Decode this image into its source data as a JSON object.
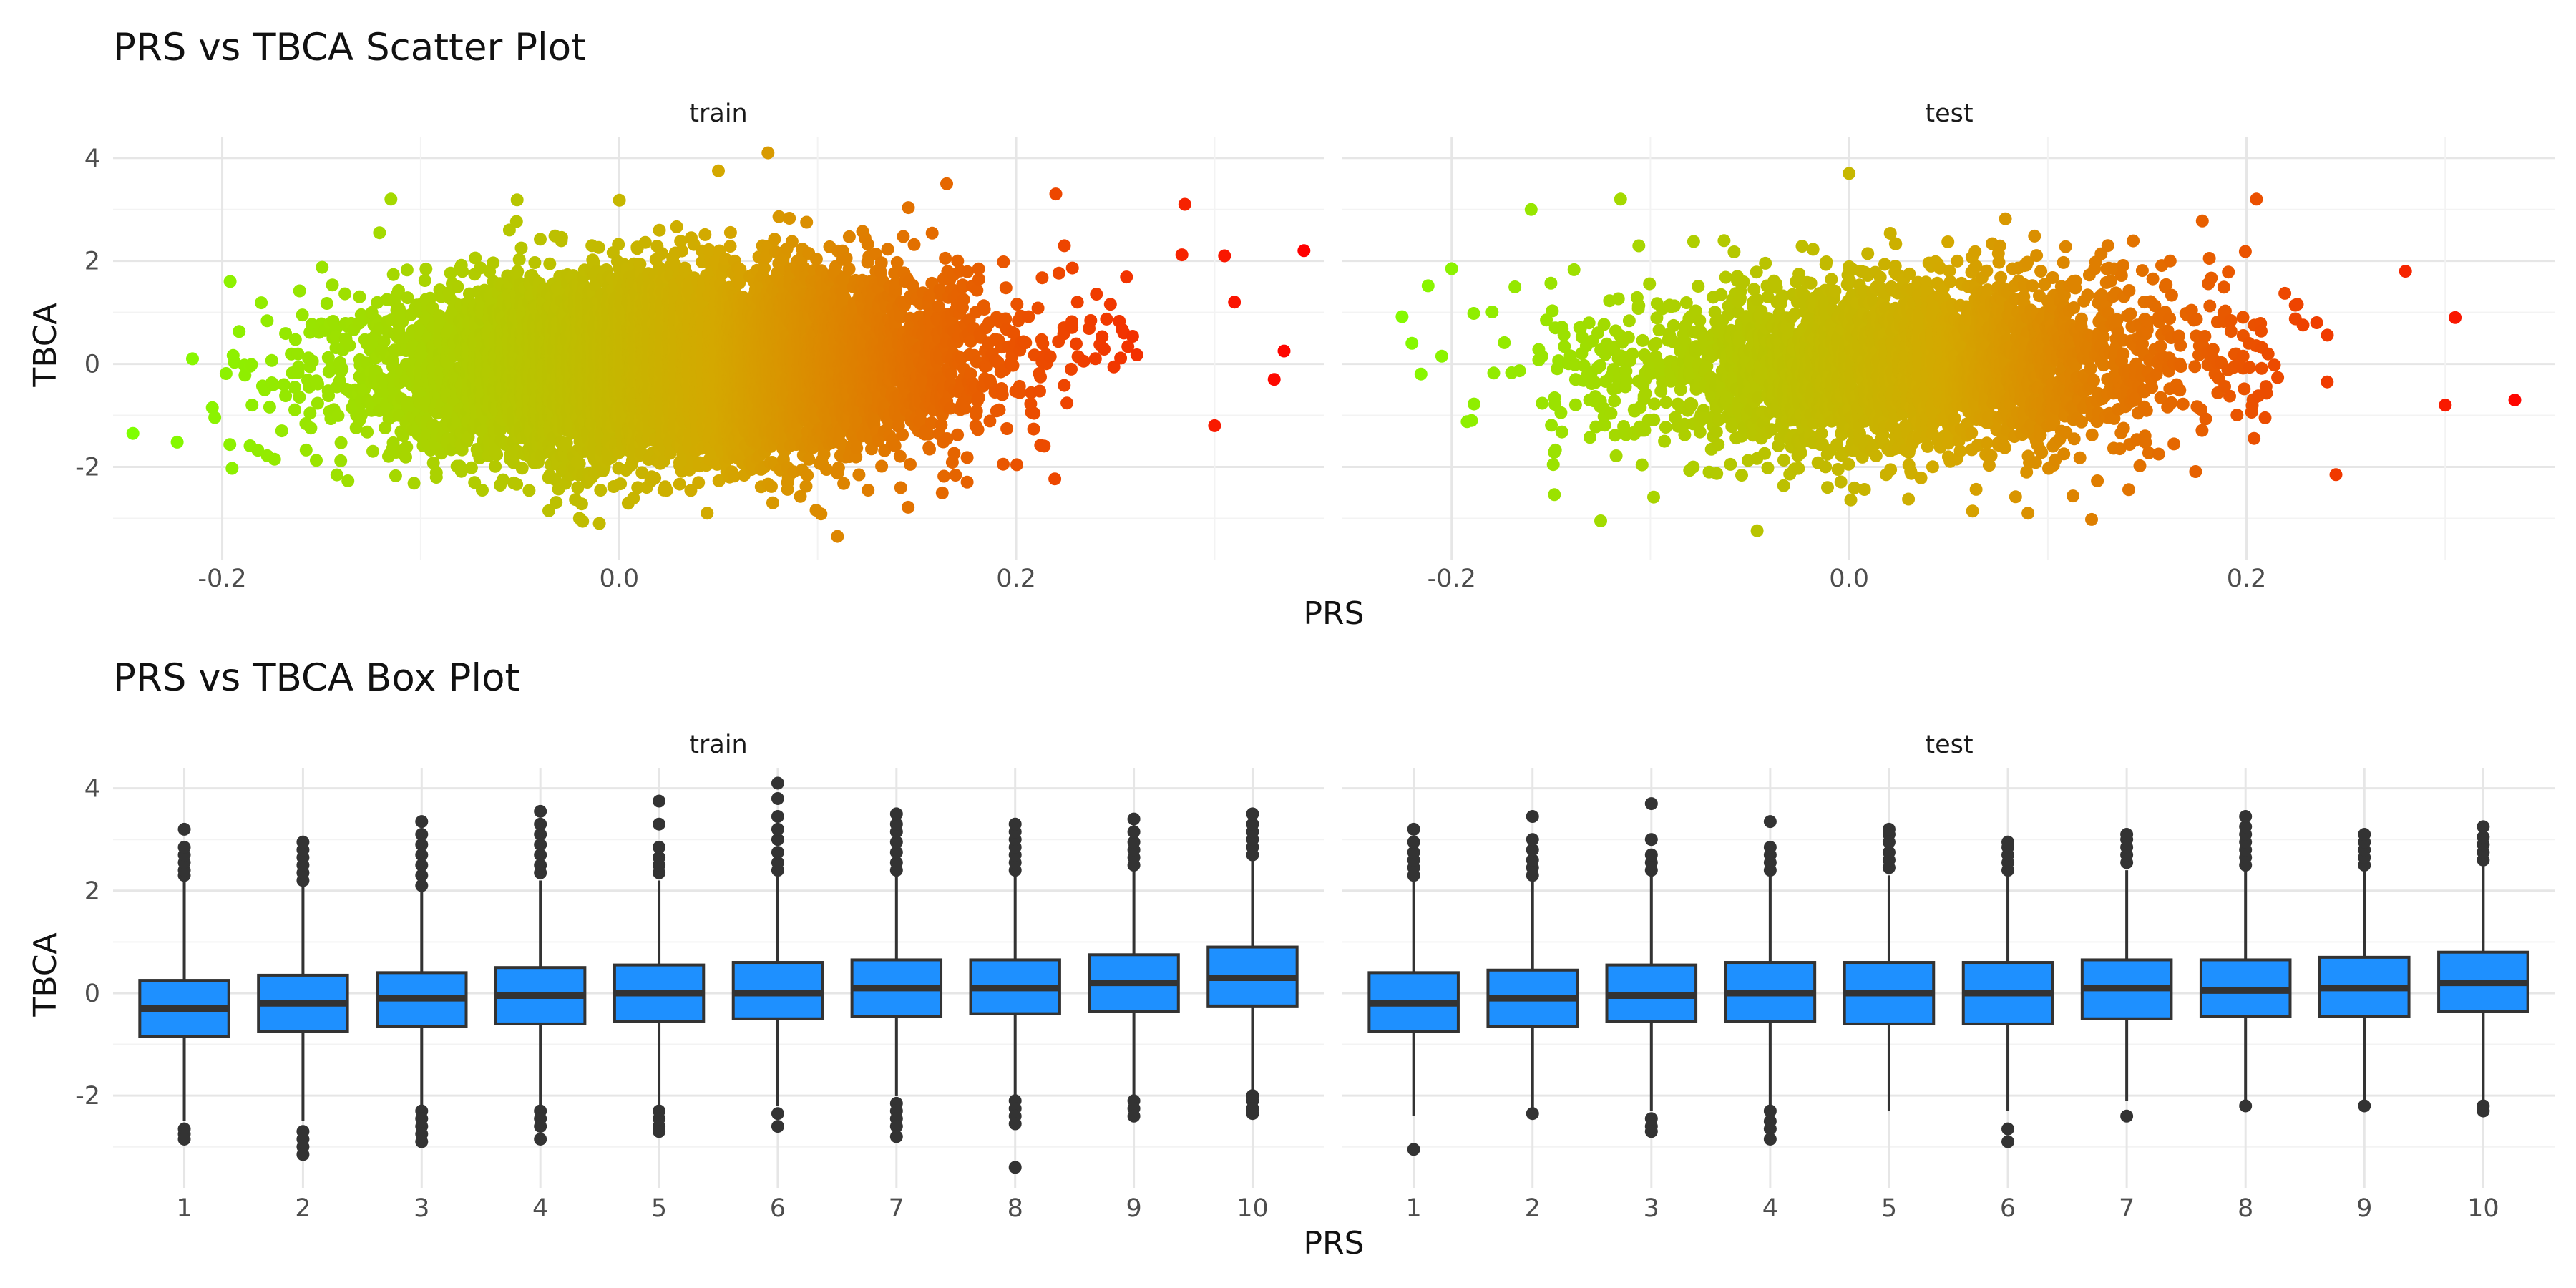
{
  "chart_data": [
    {
      "type": "scatter",
      "title": "PRS vs TBCA Scatter Plot",
      "xlabel": "PRS",
      "ylabel": "TBCA",
      "facets": [
        "train",
        "test"
      ],
      "xlim": [
        -0.255,
        0.355
      ],
      "ylim": [
        -3.8,
        4.4
      ],
      "x_ticks": [
        -0.2,
        0.0,
        0.2
      ],
      "x_tick_labels": [
        "-0.2",
        "0.0",
        "0.2"
      ],
      "y_ticks": [
        -2,
        0,
        2,
        4
      ],
      "y_tick_labels": [
        "-2",
        "0",
        "2",
        "4"
      ],
      "grid": true,
      "color_gradient": {
        "low": "#7FFF00",
        "mid": "#D4A800",
        "high": "#FF0000",
        "by": "PRS"
      },
      "series": [
        {
          "facet": "train",
          "n_points_approx": 20000,
          "x_mean": 0.03,
          "x_sd": 0.07,
          "y_mean": 0.0,
          "y_sd": 0.85,
          "slope": 3.0,
          "points": [
            {
              "x": -0.245,
              "y": -1.35
            },
            {
              "x": -0.215,
              "y": 0.1
            },
            {
              "x": -0.205,
              "y": -0.85
            },
            {
              "x": -0.185,
              "y": -0.8
            },
            {
              "x": -0.17,
              "y": -1.3
            },
            {
              "x": -0.115,
              "y": 3.2
            },
            {
              "x": -0.02,
              "y": -3.0
            },
            {
              "x": -0.01,
              "y": -3.1
            },
            {
              "x": 0.075,
              "y": 4.1
            },
            {
              "x": 0.05,
              "y": 3.75
            },
            {
              "x": 0.11,
              "y": -3.35
            },
            {
              "x": 0.165,
              "y": 3.5
            },
            {
              "x": 0.22,
              "y": 3.3
            },
            {
              "x": 0.285,
              "y": 3.1
            },
            {
              "x": 0.305,
              "y": 2.1
            },
            {
              "x": 0.345,
              "y": 2.2
            },
            {
              "x": 0.335,
              "y": 0.25
            },
            {
              "x": 0.33,
              "y": -0.3
            },
            {
              "x": 0.31,
              "y": 1.2
            },
            {
              "x": 0.3,
              "y": -1.2
            }
          ]
        },
        {
          "facet": "test",
          "n_points_approx": 7000,
          "x_mean": 0.03,
          "x_sd": 0.07,
          "y_mean": 0.0,
          "y_sd": 0.85,
          "slope": 3.0,
          "points": [
            {
              "x": -0.22,
              "y": 0.4
            },
            {
              "x": -0.2,
              "y": 1.85
            },
            {
              "x": -0.19,
              "y": -1.1
            },
            {
              "x": -0.205,
              "y": 0.15
            },
            {
              "x": -0.125,
              "y": -3.05
            },
            {
              "x": -0.16,
              "y": 3.0
            },
            {
              "x": -0.115,
              "y": 3.2
            },
            {
              "x": 0.0,
              "y": 3.7
            },
            {
              "x": 0.09,
              "y": -2.9
            },
            {
              "x": 0.205,
              "y": 3.2
            },
            {
              "x": 0.245,
              "y": -2.15
            },
            {
              "x": 0.305,
              "y": 0.9
            },
            {
              "x": 0.335,
              "y": -0.7
            },
            {
              "x": 0.3,
              "y": -0.8
            },
            {
              "x": 0.28,
              "y": 1.8
            }
          ]
        }
      ]
    },
    {
      "type": "box",
      "title": "PRS vs TBCA Box Plot",
      "xlabel": "PRS",
      "ylabel": "TBCA",
      "facets": [
        "train",
        "test"
      ],
      "categories": [
        "1",
        "2",
        "3",
        "4",
        "5",
        "6",
        "7",
        "8",
        "9",
        "10"
      ],
      "ylim": [
        -3.8,
        4.4
      ],
      "y_ticks": [
        -2,
        0,
        2,
        4
      ],
      "y_tick_labels": [
        "-2",
        "0",
        "2",
        "4"
      ],
      "grid": true,
      "box_color": "#1E90FF",
      "series": [
        {
          "facet": "train",
          "boxes": [
            {
              "q1": -0.85,
              "median": -0.3,
              "q3": 0.25,
              "whisker_low": -2.5,
              "whisker_high": 2.2,
              "outliers": [
                -2.65,
                -2.75,
                -2.85,
                2.3,
                2.4,
                2.55,
                2.7,
                2.85,
                3.2
              ]
            },
            {
              "q1": -0.75,
              "median": -0.2,
              "q3": 0.35,
              "whisker_low": -2.5,
              "whisker_high": 2.1,
              "outliers": [
                -2.7,
                -2.85,
                -3.0,
                -3.15,
                2.2,
                2.35,
                2.5,
                2.65,
                2.8,
                2.95
              ]
            },
            {
              "q1": -0.65,
              "median": -0.1,
              "q3": 0.4,
              "whisker_low": -2.2,
              "whisker_high": 2.0,
              "outliers": [
                -2.3,
                -2.45,
                -2.6,
                -2.75,
                -2.9,
                2.1,
                2.3,
                2.5,
                2.7,
                2.9,
                3.1,
                3.35
              ]
            },
            {
              "q1": -0.6,
              "median": -0.05,
              "q3": 0.5,
              "whisker_low": -2.2,
              "whisker_high": 2.2,
              "outliers": [
                -2.3,
                -2.45,
                -2.6,
                -2.85,
                2.35,
                2.5,
                2.7,
                2.9,
                3.1,
                3.3,
                3.55
              ]
            },
            {
              "q1": -0.55,
              "median": 0.0,
              "q3": 0.55,
              "whisker_low": -2.2,
              "whisker_high": 2.2,
              "outliers": [
                -2.3,
                -2.45,
                -2.6,
                -2.7,
                2.35,
                2.5,
                2.65,
                2.85,
                3.3,
                3.75
              ]
            },
            {
              "q1": -0.5,
              "median": 0.0,
              "q3": 0.6,
              "whisker_low": -2.2,
              "whisker_high": 2.3,
              "outliers": [
                -2.35,
                -2.6,
                2.4,
                2.55,
                2.75,
                3.0,
                3.2,
                3.45,
                3.8,
                4.1
              ]
            },
            {
              "q1": -0.45,
              "median": 0.1,
              "q3": 0.65,
              "whisker_low": -2.0,
              "whisker_high": 2.3,
              "outliers": [
                -2.15,
                -2.3,
                -2.45,
                -2.6,
                -2.8,
                2.4,
                2.55,
                2.75,
                2.95,
                3.15,
                3.3,
                3.5
              ]
            },
            {
              "q1": -0.4,
              "median": 0.1,
              "q3": 0.65,
              "whisker_low": -2.0,
              "whisker_high": 2.3,
              "outliers": [
                -2.1,
                -2.25,
                -2.4,
                -2.55,
                -3.4,
                2.4,
                2.55,
                2.7,
                2.85,
                3.0,
                3.15,
                3.3
              ]
            },
            {
              "q1": -0.35,
              "median": 0.2,
              "q3": 0.75,
              "whisker_low": -2.0,
              "whisker_high": 2.4,
              "outliers": [
                -2.1,
                -2.25,
                -2.4,
                2.5,
                2.65,
                2.8,
                2.95,
                3.15,
                3.4
              ]
            },
            {
              "q1": -0.25,
              "median": 0.3,
              "q3": 0.9,
              "whisker_low": -1.9,
              "whisker_high": 2.6,
              "outliers": [
                -2.0,
                -2.1,
                -2.25,
                -2.35,
                2.7,
                2.85,
                3.0,
                3.15,
                3.3,
                3.5
              ]
            }
          ]
        },
        {
          "facet": "test",
          "boxes": [
            {
              "q1": -0.75,
              "median": -0.2,
              "q3": 0.4,
              "whisker_low": -2.4,
              "whisker_high": 2.2,
              "outliers": [
                -3.05,
                2.3,
                2.45,
                2.6,
                2.75,
                2.95,
                3.2
              ]
            },
            {
              "q1": -0.65,
              "median": -0.1,
              "q3": 0.45,
              "whisker_low": -2.3,
              "whisker_high": 2.2,
              "outliers": [
                -2.35,
                2.3,
                2.45,
                2.6,
                2.8,
                3.0,
                3.45
              ]
            },
            {
              "q1": -0.55,
              "median": -0.05,
              "q3": 0.55,
              "whisker_low": -2.3,
              "whisker_high": 2.3,
              "outliers": [
                -2.45,
                -2.6,
                -2.7,
                2.4,
                2.55,
                2.7,
                3.0,
                3.7
              ]
            },
            {
              "q1": -0.55,
              "median": 0.0,
              "q3": 0.6,
              "whisker_low": -2.2,
              "whisker_high": 2.3,
              "outliers": [
                -2.3,
                -2.5,
                -2.65,
                -2.85,
                2.4,
                2.55,
                2.7,
                2.85,
                3.35
              ]
            },
            {
              "q1": -0.6,
              "median": 0.0,
              "q3": 0.6,
              "whisker_low": -2.3,
              "whisker_high": 2.3,
              "outliers": [
                2.45,
                2.6,
                2.75,
                2.95,
                3.1,
                3.2
              ]
            },
            {
              "q1": -0.6,
              "median": 0.0,
              "q3": 0.6,
              "whisker_low": -2.3,
              "whisker_high": 2.3,
              "outliers": [
                -2.65,
                -2.9,
                2.4,
                2.55,
                2.7,
                2.85,
                2.95
              ]
            },
            {
              "q1": -0.5,
              "median": 0.1,
              "q3": 0.65,
              "whisker_low": -2.1,
              "whisker_high": 2.4,
              "outliers": [
                -2.4,
                2.55,
                2.7,
                2.85,
                3.0,
                3.1
              ]
            },
            {
              "q1": -0.45,
              "median": 0.05,
              "q3": 0.65,
              "whisker_low": -2.1,
              "whisker_high": 2.4,
              "outliers": [
                -2.2,
                2.5,
                2.65,
                2.8,
                2.95,
                3.1,
                3.25,
                3.45
              ]
            },
            {
              "q1": -0.45,
              "median": 0.1,
              "q3": 0.7,
              "whisker_low": -2.1,
              "whisker_high": 2.4,
              "outliers": [
                -2.2,
                2.5,
                2.65,
                2.8,
                2.95,
                3.1
              ]
            },
            {
              "q1": -0.35,
              "median": 0.2,
              "q3": 0.8,
              "whisker_low": -2.1,
              "whisker_high": 2.5,
              "outliers": [
                -2.2,
                -2.3,
                2.6,
                2.75,
                2.9,
                3.05,
                3.25
              ]
            }
          ]
        }
      ]
    }
  ]
}
